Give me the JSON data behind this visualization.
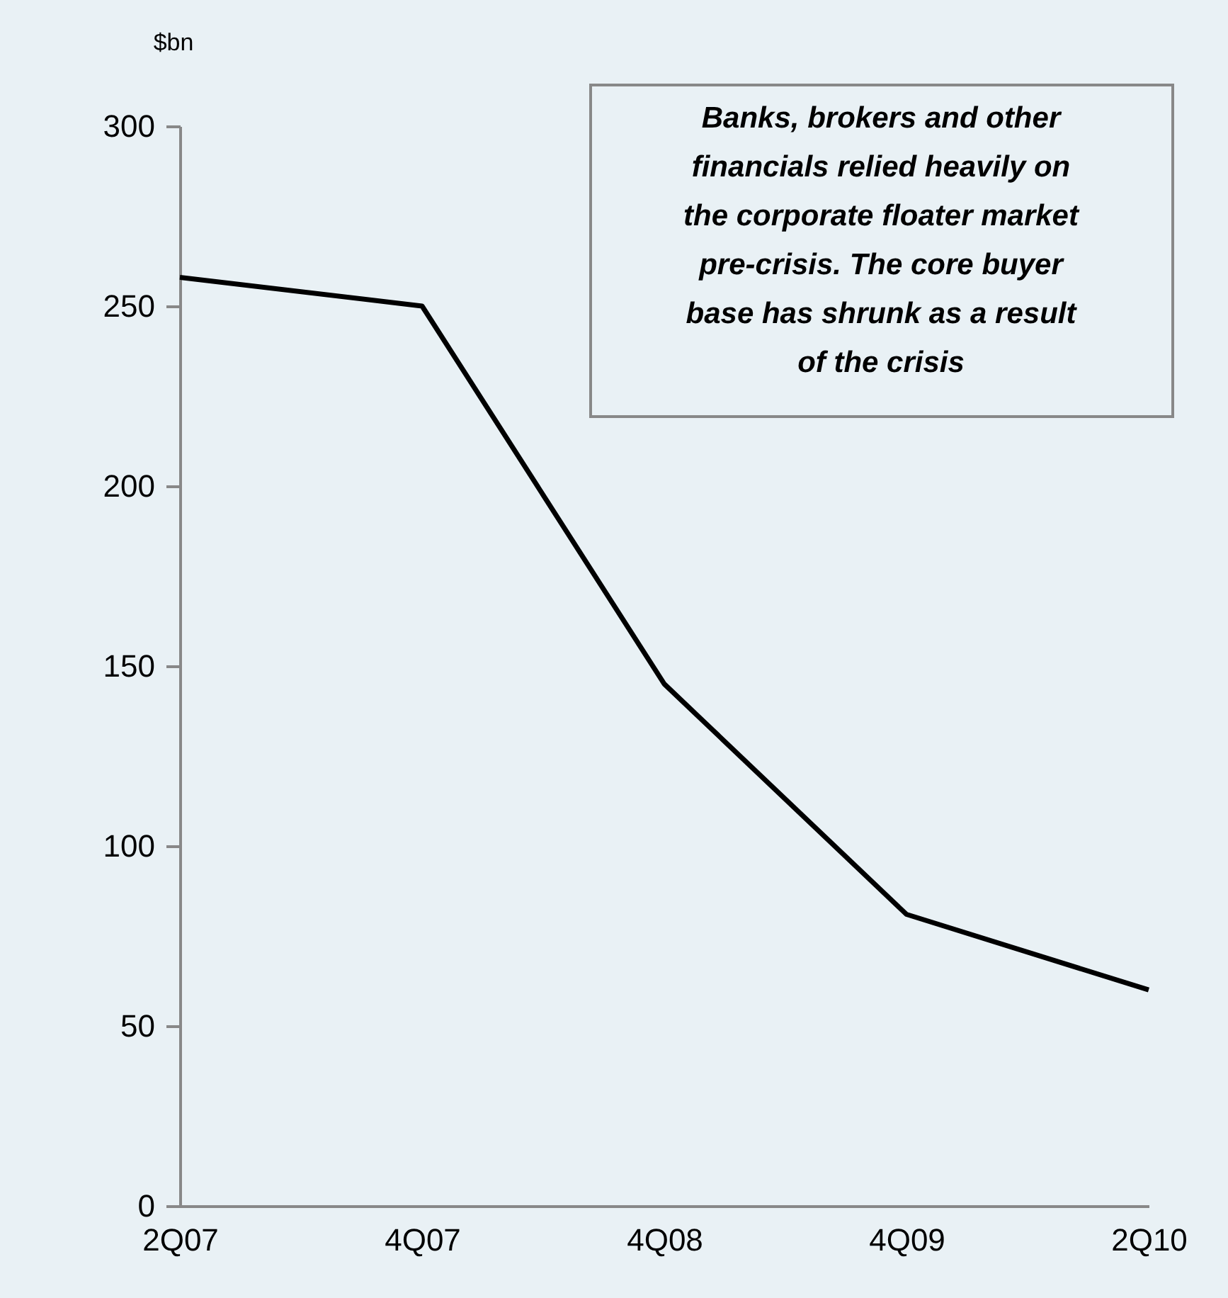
{
  "chart_data": {
    "type": "line",
    "ylabel": "$bn",
    "categories": [
      "2Q07",
      "4Q07",
      "4Q08",
      "4Q09",
      "2Q10"
    ],
    "series": [
      {
        "color": "#000000",
        "values": [
          258,
          250,
          145,
          81,
          60
        ]
      }
    ],
    "ylim": [
      0,
      300
    ],
    "yticks": [
      0,
      50,
      100,
      150,
      200,
      250,
      300
    ],
    "grid": false,
    "legend": false,
    "marker": "none",
    "line_style": "solid",
    "annotations": [
      "Banks, brokers and other financials relied heavily on the corporate floater market pre-crisis.  The core buyer base has shrunk as a result of the crisis"
    ]
  }
}
